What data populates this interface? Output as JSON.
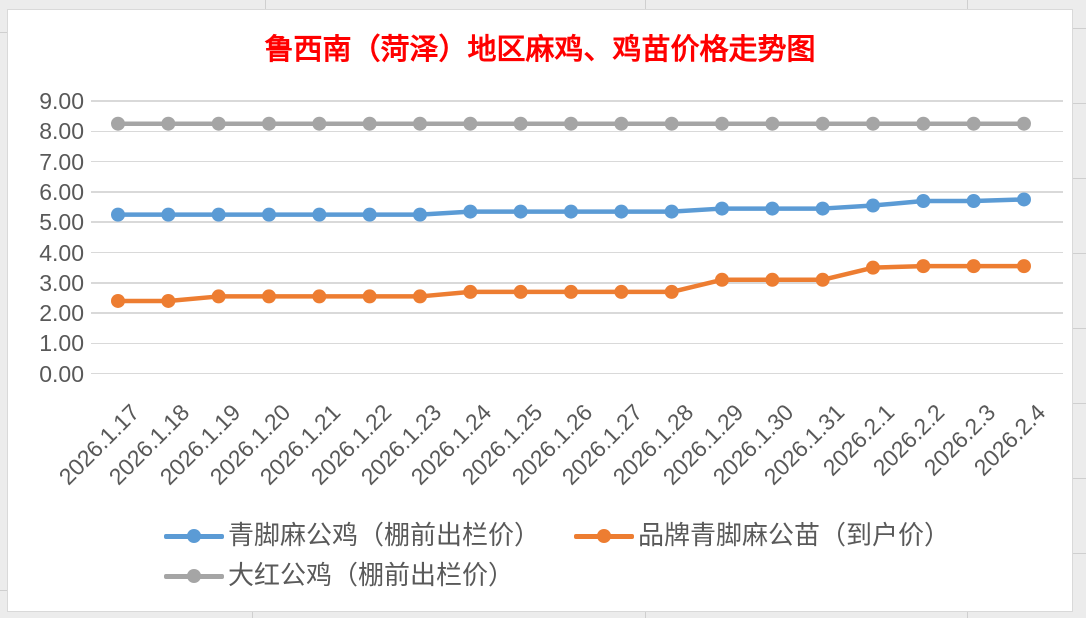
{
  "chart_data": {
    "type": "line",
    "title": "鲁西南（菏泽）地区麻鸡、鸡苗价格走势图",
    "title_color": "#FF0000",
    "categories": [
      "2026.1.17",
      "2026.1.18",
      "2026.1.19",
      "2026.1.20",
      "2026.1.21",
      "2026.1.22",
      "2026.1.23",
      "2026.1.24",
      "2026.1.25",
      "2026.1.26",
      "2026.1.27",
      "2026.1.28",
      "2026.1.29",
      "2026.1.30",
      "2026.1.31",
      "2026.2.1",
      "2026.2.2",
      "2026.2.3",
      "2026.2.4"
    ],
    "series": [
      {
        "name": "青脚麻公鸡（棚前出栏价）",
        "color": "#5B9BD5",
        "values": [
          5.25,
          5.25,
          5.25,
          5.25,
          5.25,
          5.25,
          5.25,
          5.35,
          5.35,
          5.35,
          5.35,
          5.35,
          5.45,
          5.45,
          5.45,
          5.55,
          5.7,
          5.7,
          5.75
        ]
      },
      {
        "name": "品牌青脚麻公苗（到户价）",
        "color": "#ED7D31",
        "values": [
          2.4,
          2.4,
          2.55,
          2.55,
          2.55,
          2.55,
          2.55,
          2.7,
          2.7,
          2.7,
          2.7,
          2.7,
          3.1,
          3.1,
          3.1,
          3.5,
          3.55,
          3.55,
          3.55
        ]
      },
      {
        "name": "大红公鸡（棚前出栏价）",
        "color": "#A5A5A5",
        "values": [
          8.25,
          8.25,
          8.25,
          8.25,
          8.25,
          8.25,
          8.25,
          8.25,
          8.25,
          8.25,
          8.25,
          8.25,
          8.25,
          8.25,
          8.25,
          8.25,
          8.25,
          8.25,
          8.25
        ]
      }
    ],
    "ylim": [
      0,
      9
    ],
    "ytick_step": 1.0,
    "ytick_labels": [
      "0.00",
      "1.00",
      "2.00",
      "3.00",
      "4.00",
      "5.00",
      "6.00",
      "7.00",
      "8.00",
      "9.00"
    ],
    "grid": true,
    "legend_position": "bottom",
    "gridline_color": "#D9D9D9",
    "axis_text_color": "#595959"
  }
}
